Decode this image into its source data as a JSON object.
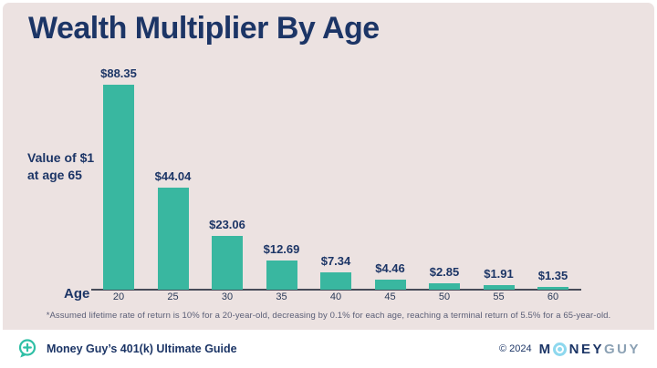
{
  "title": "Wealth Multiplier By Age",
  "y_axis_label": {
    "line1": "Value of $1",
    "line2": "at age 65"
  },
  "x_axis_label": "Age",
  "footnote": "*Assumed lifetime rate of return is 10% for a 20-year-old, decreasing by 0.1% for each age, reaching a terminal return of 5.5% for a 65-year-old.",
  "footer": {
    "left_text": "Money Guy’s 401(k) Ultimate Guide",
    "left_icon": "chat-bubble-plus-icon",
    "copyright": "© 2024",
    "brand_m": "M",
    "brand_o_icon": "target-circle-icon",
    "brand_ney": "NEY",
    "brand_guy": "GUY"
  },
  "colors": {
    "background_pink": "#ece2e1",
    "navy": "#1c3566",
    "bar_teal": "#39b7a0",
    "axis_line": "#474b58",
    "footnote_gray": "#5a5e76",
    "brand_guy_gray": "#8ba1b4",
    "brand_o_blue": "#8ed8ee"
  },
  "chart_data": {
    "type": "bar",
    "title": "Wealth Multiplier By Age",
    "categories": [
      "20",
      "25",
      "30",
      "35",
      "40",
      "45",
      "50",
      "55",
      "60"
    ],
    "values": [
      88.35,
      44.04,
      23.06,
      12.69,
      7.34,
      4.46,
      2.85,
      1.91,
      1.35
    ],
    "labels": [
      "$88.35",
      "$44.04",
      "$23.06",
      "$12.69",
      "$7.34",
      "$4.46",
      "$2.85",
      "$1.91",
      "$1.35"
    ],
    "xlabel": "Age",
    "ylabel": "Value of $1 at age 65",
    "ylim": [
      0,
      90
    ],
    "grid": false,
    "legend": false,
    "bar_color": "#39b7a0"
  }
}
